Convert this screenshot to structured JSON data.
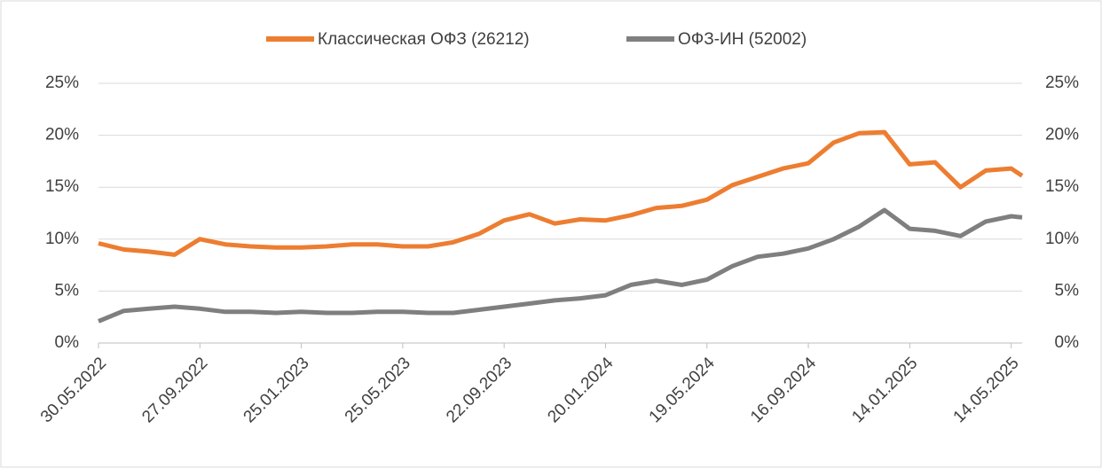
{
  "chart_data": {
    "type": "line",
    "x": [
      "2022-05-30",
      "2022-06-29",
      "2022-07-29",
      "2022-08-28",
      "2022-09-27",
      "2022-10-27",
      "2022-11-26",
      "2022-12-26",
      "2023-01-25",
      "2023-02-24",
      "2023-03-26",
      "2023-04-25",
      "2023-05-25",
      "2023-06-24",
      "2023-07-24",
      "2023-08-23",
      "2023-09-22",
      "2023-10-22",
      "2023-11-21",
      "2023-12-21",
      "2024-01-20",
      "2024-02-19",
      "2024-03-20",
      "2024-04-19",
      "2024-05-19",
      "2024-06-18",
      "2024-07-18",
      "2024-08-17",
      "2024-09-16",
      "2024-10-16",
      "2024-11-15",
      "2024-12-15",
      "2025-01-14",
      "2025-02-13",
      "2025-03-15",
      "2025-04-14",
      "2025-05-14",
      "2025-05-27"
    ],
    "series": [
      {
        "name": "Классическая ОФЗ (26212)",
        "color": "#ed7d31",
        "values": [
          9.6,
          9.0,
          8.8,
          8.5,
          10.0,
          9.5,
          9.3,
          9.2,
          9.2,
          9.3,
          9.5,
          9.5,
          9.3,
          9.3,
          9.7,
          10.5,
          11.8,
          12.4,
          11.5,
          11.9,
          11.8,
          12.3,
          13.0,
          13.2,
          13.8,
          15.2,
          16.0,
          16.8,
          17.3,
          19.3,
          20.2,
          20.3,
          17.2,
          17.4,
          15.0,
          16.6,
          16.8,
          16.1
        ]
      },
      {
        "name": "ОФЗ-ИН (52002)",
        "color": "#7f7f7f",
        "values": [
          2.1,
          3.1,
          3.3,
          3.5,
          3.3,
          3.0,
          3.0,
          2.9,
          3.0,
          2.9,
          2.9,
          3.0,
          3.0,
          2.9,
          2.9,
          3.2,
          3.5,
          3.8,
          4.1,
          4.3,
          4.6,
          5.6,
          6.0,
          5.6,
          6.1,
          7.4,
          8.3,
          8.6,
          9.1,
          10.0,
          11.2,
          12.8,
          11.0,
          10.8,
          10.3,
          11.7,
          12.2,
          12.1
        ]
      }
    ],
    "xlim": [
      "2022-05-30",
      "2025-05-27"
    ],
    "xticks": [
      {
        "value": "2022-05-30",
        "label": "30.05.2022"
      },
      {
        "value": "2022-09-27",
        "label": "27.09.2022"
      },
      {
        "value": "2023-01-25",
        "label": "25.01.2023"
      },
      {
        "value": "2023-05-25",
        "label": "25.05.2023"
      },
      {
        "value": "2023-09-22",
        "label": "22.09.2023"
      },
      {
        "value": "2024-01-20",
        "label": "20.01.2024"
      },
      {
        "value": "2024-05-19",
        "label": "19.05.2024"
      },
      {
        "value": "2024-09-16",
        "label": "16.09.2024"
      },
      {
        "value": "2025-01-14",
        "label": "14.01.2025"
      },
      {
        "value": "2025-05-14",
        "label": "14.05.2025"
      }
    ],
    "ylim": [
      0,
      25
    ],
    "yticks": [
      {
        "value": 0,
        "label": "0%"
      },
      {
        "value": 5,
        "label": "5%"
      },
      {
        "value": 10,
        "label": "10%"
      },
      {
        "value": 15,
        "label": "15%"
      },
      {
        "value": 20,
        "label": "20%"
      },
      {
        "value": 25,
        "label": "25%"
      }
    ],
    "y2lim": [
      0,
      25
    ],
    "y2ticks": [
      {
        "value": 0,
        "label": "0%"
      },
      {
        "value": 5,
        "label": "5%"
      },
      {
        "value": 10,
        "label": "10%"
      },
      {
        "value": 15,
        "label": "15%"
      },
      {
        "value": 20,
        "label": "20%"
      },
      {
        "value": 25,
        "label": "25%"
      }
    ],
    "grid": true,
    "legend": "top"
  }
}
